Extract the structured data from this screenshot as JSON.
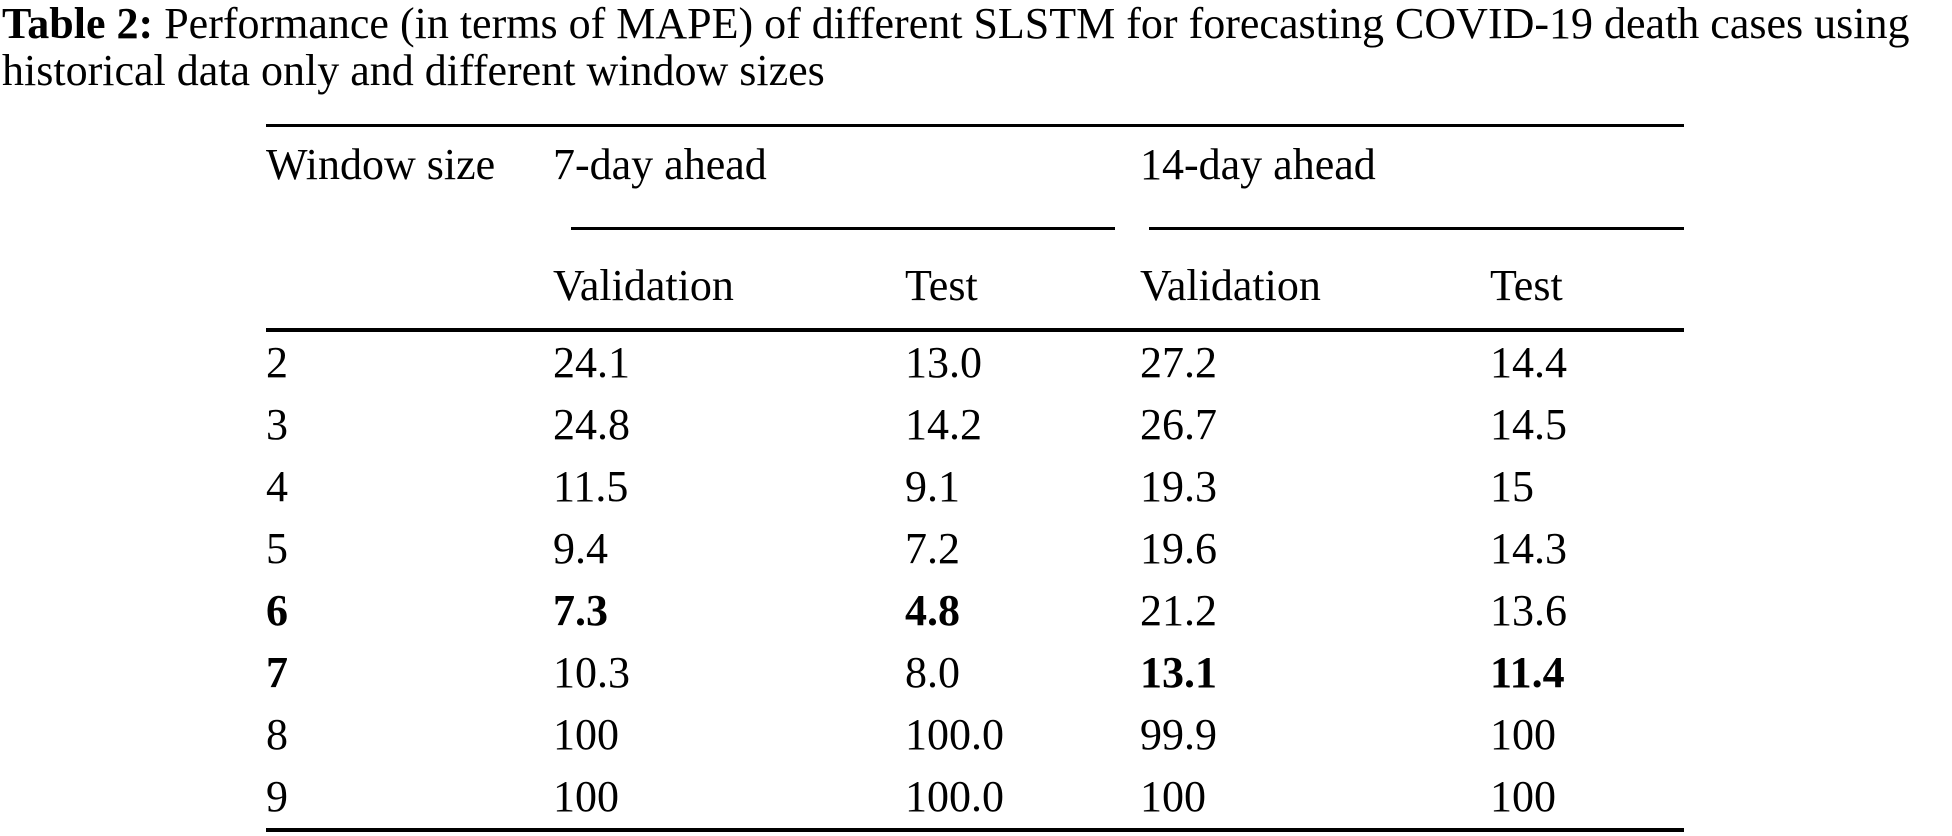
{
  "caption": {
    "label": "Table 2:",
    "text": " Performance (in terms of MAPE) of different SLSTM for forecasting COVID-19 death cases using historical data only and different window sizes"
  },
  "table": {
    "corner_header": "Window size",
    "spanners": [
      {
        "label": "7-day ahead",
        "subheaders": [
          "Validation",
          "Test"
        ]
      },
      {
        "label": "14-day ahead",
        "subheaders": [
          "Validation",
          "Test"
        ]
      }
    ],
    "rows": [
      {
        "window": "2",
        "values": [
          "24.1",
          "13.0",
          "27.2",
          "14.4"
        ]
      },
      {
        "window": "3",
        "values": [
          "24.8",
          "14.2",
          "26.7",
          "14.5"
        ]
      },
      {
        "window": "4",
        "values": [
          "11.5",
          "9.1",
          "19.3",
          "15"
        ]
      },
      {
        "window": "5",
        "values": [
          "9.4",
          "7.2",
          "19.6",
          "14.3"
        ]
      },
      {
        "window": "6",
        "values": [
          "7.3",
          "4.8",
          "21.2",
          "13.6"
        ]
      },
      {
        "window": "7",
        "values": [
          "10.3",
          "8.0",
          "13.1",
          "11.4"
        ]
      },
      {
        "window": "8",
        "values": [
          "100",
          "100.0",
          "99.9",
          "100"
        ]
      },
      {
        "window": "9",
        "values": [
          "100",
          "100.0",
          "100",
          "100"
        ]
      }
    ]
  }
}
